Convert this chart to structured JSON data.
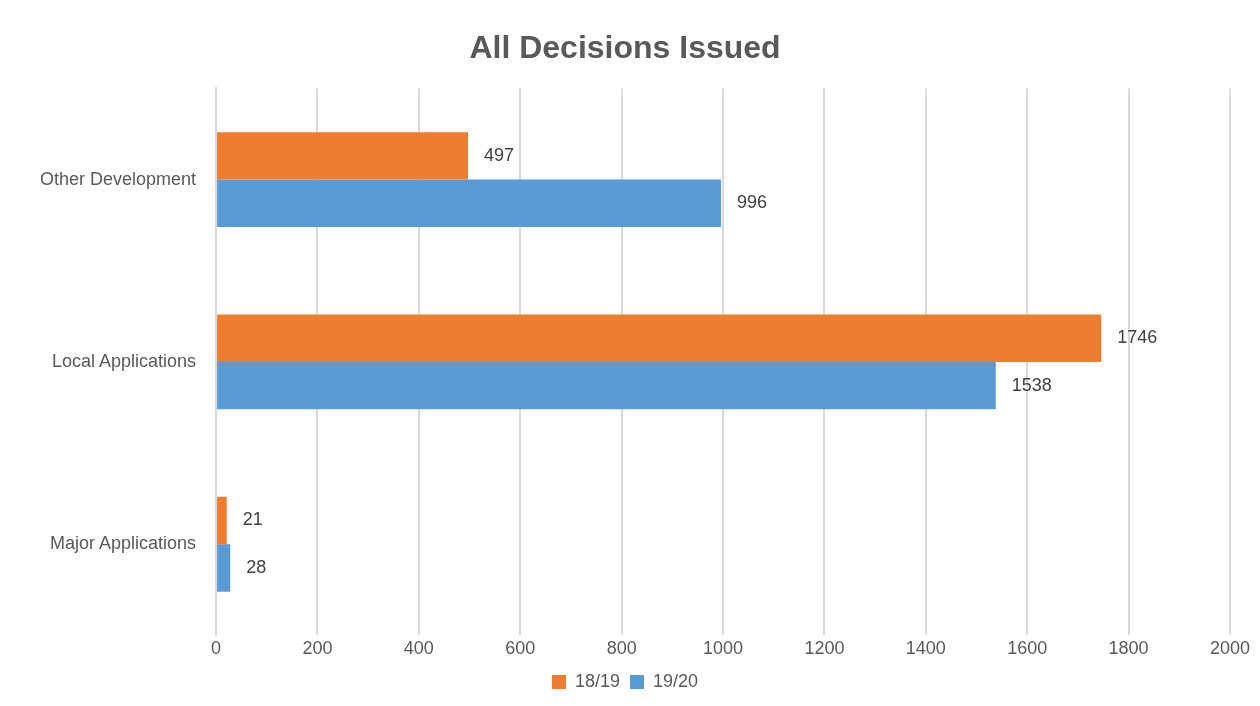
{
  "chart_data": {
    "type": "bar",
    "title": "All Decisions Issued",
    "orientation": "horizontal",
    "categories": [
      "Other Development",
      "Local Applications",
      "Major Applications"
    ],
    "series": [
      {
        "name": "18/19",
        "color": "#ed7d31",
        "values": [
          497,
          1746,
          21
        ]
      },
      {
        "name": "19/20",
        "color": "#5b9bd5",
        "values": [
          996,
          1538,
          28
        ]
      }
    ],
    "xlim": [
      0,
      2000
    ],
    "xticks": [
      0,
      200,
      400,
      600,
      800,
      1000,
      1200,
      1400,
      1600,
      1800,
      2000
    ],
    "grid": "x",
    "legend": "bottom",
    "data_labels": true
  }
}
